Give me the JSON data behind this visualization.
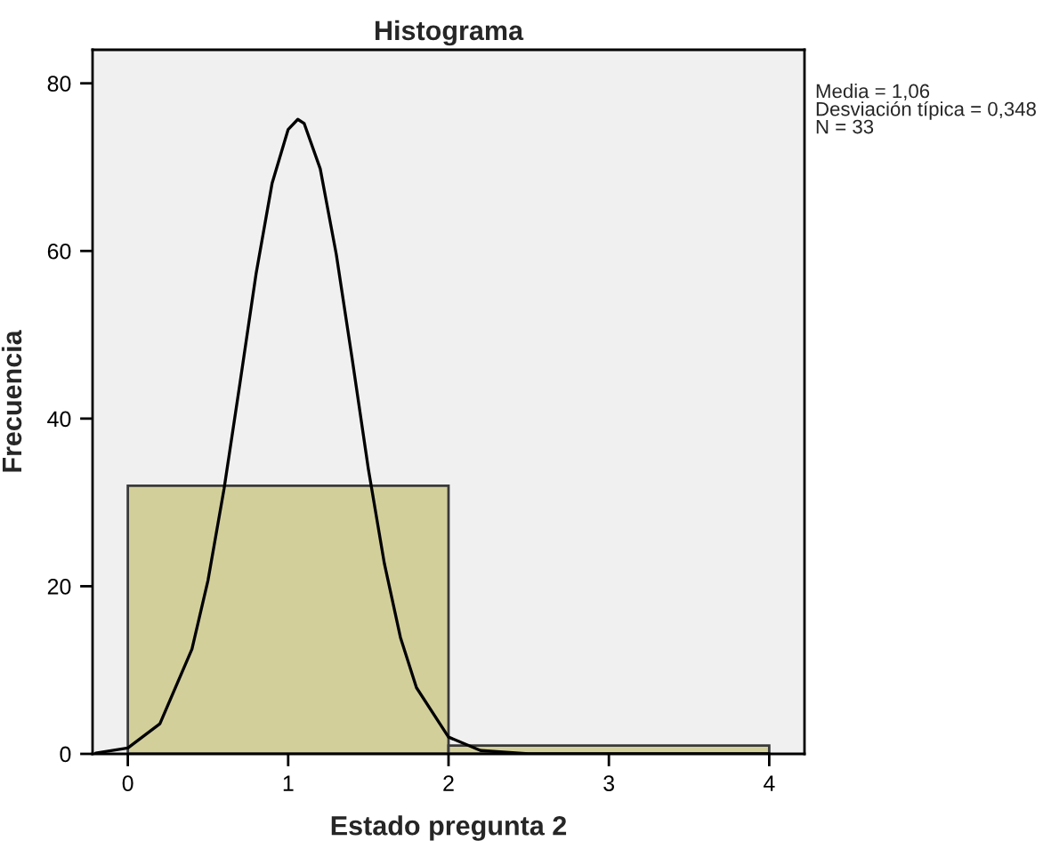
{
  "chart_data": {
    "type": "histogram",
    "title": "Histograma",
    "xlabel": "Estado pregunta 2",
    "ylabel": "Frecuencia",
    "bins": [
      0,
      2,
      4
    ],
    "values": [
      32,
      1
    ],
    "color": "#d3cf9b",
    "series": [
      {
        "type": "line",
        "color": "#000000",
        "x": [
          -0.2,
          0,
          0.2,
          0.4,
          0.5,
          0.6,
          0.7,
          0.8,
          0.9,
          1.0,
          1.06,
          1.1,
          1.2,
          1.3,
          1.4,
          1.5,
          1.6,
          1.7,
          1.8,
          2.0,
          2.2,
          2.5,
          3.0,
          4.0
        ],
        "values": [
          0.1,
          0.7,
          3.6,
          12.5,
          20.7,
          31.6,
          44.3,
          57.3,
          68.1,
          74.5,
          75.7,
          75.2,
          69.8,
          59.6,
          47.0,
          34.0,
          22.7,
          13.9,
          7.9,
          2.0,
          0.4,
          0.0,
          0.0,
          0.0
        ]
      }
    ],
    "annotations": [
      "Media = 1,06",
      "Desviación típica = 0,348",
      "N = 33"
    ],
    "xlim": [
      -0.22,
      4.22
    ],
    "ylim": [
      0,
      84
    ],
    "xticks": [
      0,
      1,
      2,
      3,
      4
    ],
    "yticks": [
      0,
      20,
      40,
      60,
      80
    ],
    "grid": false,
    "marker": "none",
    "line_style": "solid"
  }
}
